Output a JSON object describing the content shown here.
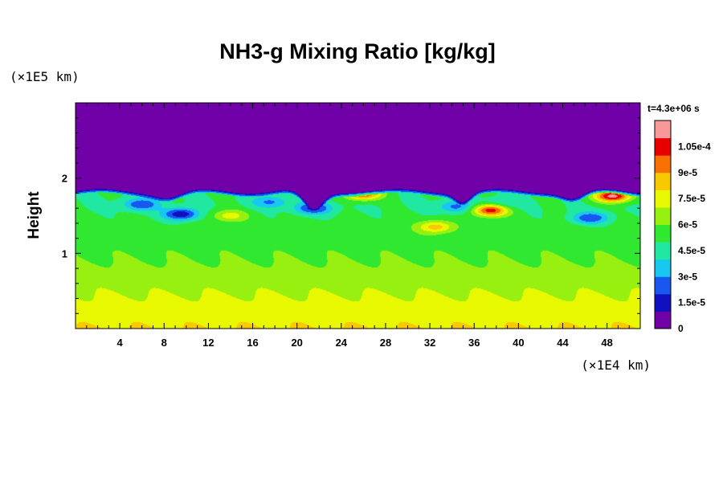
{
  "chart_data": {
    "type": "heatmap",
    "title": "NH3-g Mixing Ratio [kg/kg]",
    "ylabel": "Height",
    "x_unit": "(×1E4 km)",
    "y_unit": "(×1E5 km)",
    "time_label": "t=4.3e+06 s",
    "xlim": [
      0,
      51
    ],
    "ylim": [
      0,
      3
    ],
    "x_ticks": [
      "4",
      "8",
      "12",
      "16",
      "20",
      "24",
      "28",
      "32",
      "36",
      "40",
      "44",
      "48"
    ],
    "x_tick_values": [
      4,
      8,
      12,
      16,
      20,
      24,
      28,
      32,
      36,
      40,
      44,
      48
    ],
    "y_ticks": [
      "1",
      "2"
    ],
    "y_tick_values": [
      1,
      2
    ],
    "colorbar": {
      "labels": [
        "0",
        "1.5e-5",
        "3e-5",
        "4.5e-5",
        "6e-5",
        "7.5e-5",
        "9e-5",
        "1.05e-4"
      ],
      "values": [
        0,
        1.5e-05,
        3e-05,
        4.5e-05,
        6e-05,
        7.5e-05,
        9e-05,
        0.000105
      ],
      "max": 0.00012,
      "colors": [
        "#7000a8",
        "#1010c0",
        "#1858f0",
        "#18c8f0",
        "#20e8a0",
        "#30e830",
        "#98f010",
        "#e8f800",
        "#f8c800",
        "#f87000",
        "#e80000",
        "#f89898"
      ]
    },
    "field": {
      "top_value": 0,
      "cloud_top_height": 1.84,
      "surface_value": 8e-05,
      "mid_value": 6e-05,
      "upper_value": 5e-05,
      "features": [
        {
          "kind": "depletion",
          "x": 9.5,
          "y": 1.52,
          "value": 1.2e-05
        },
        {
          "kind": "depletion",
          "x": 6.0,
          "y": 1.65,
          "value": 2e-05
        },
        {
          "kind": "depletion",
          "x": 17.5,
          "y": 1.68,
          "value": 2.8e-05
        },
        {
          "kind": "depletion",
          "x": 21.5,
          "y": 1.6,
          "value": 1.6e-05
        },
        {
          "kind": "depletion",
          "x": 34.5,
          "y": 1.62,
          "value": 2.6e-05
        },
        {
          "kind": "depletion",
          "x": 38.5,
          "y": 1.65,
          "value": 3.5e-05
        },
        {
          "kind": "depletion",
          "x": 46.5,
          "y": 1.47,
          "value": 2e-05
        },
        {
          "kind": "enrichment",
          "x": 26.0,
          "y": 1.79,
          "value": 0.000102
        },
        {
          "kind": "enrichment",
          "x": 37.5,
          "y": 1.57,
          "value": 0.000105
        },
        {
          "kind": "enrichment",
          "x": 48.5,
          "y": 1.76,
          "value": 0.000115
        },
        {
          "kind": "enrichment",
          "x": 32.5,
          "y": 1.35,
          "value": 8.5e-05
        },
        {
          "kind": "enrichment",
          "x": 14.0,
          "y": 1.5,
          "value": 7.5e-05
        }
      ]
    }
  }
}
